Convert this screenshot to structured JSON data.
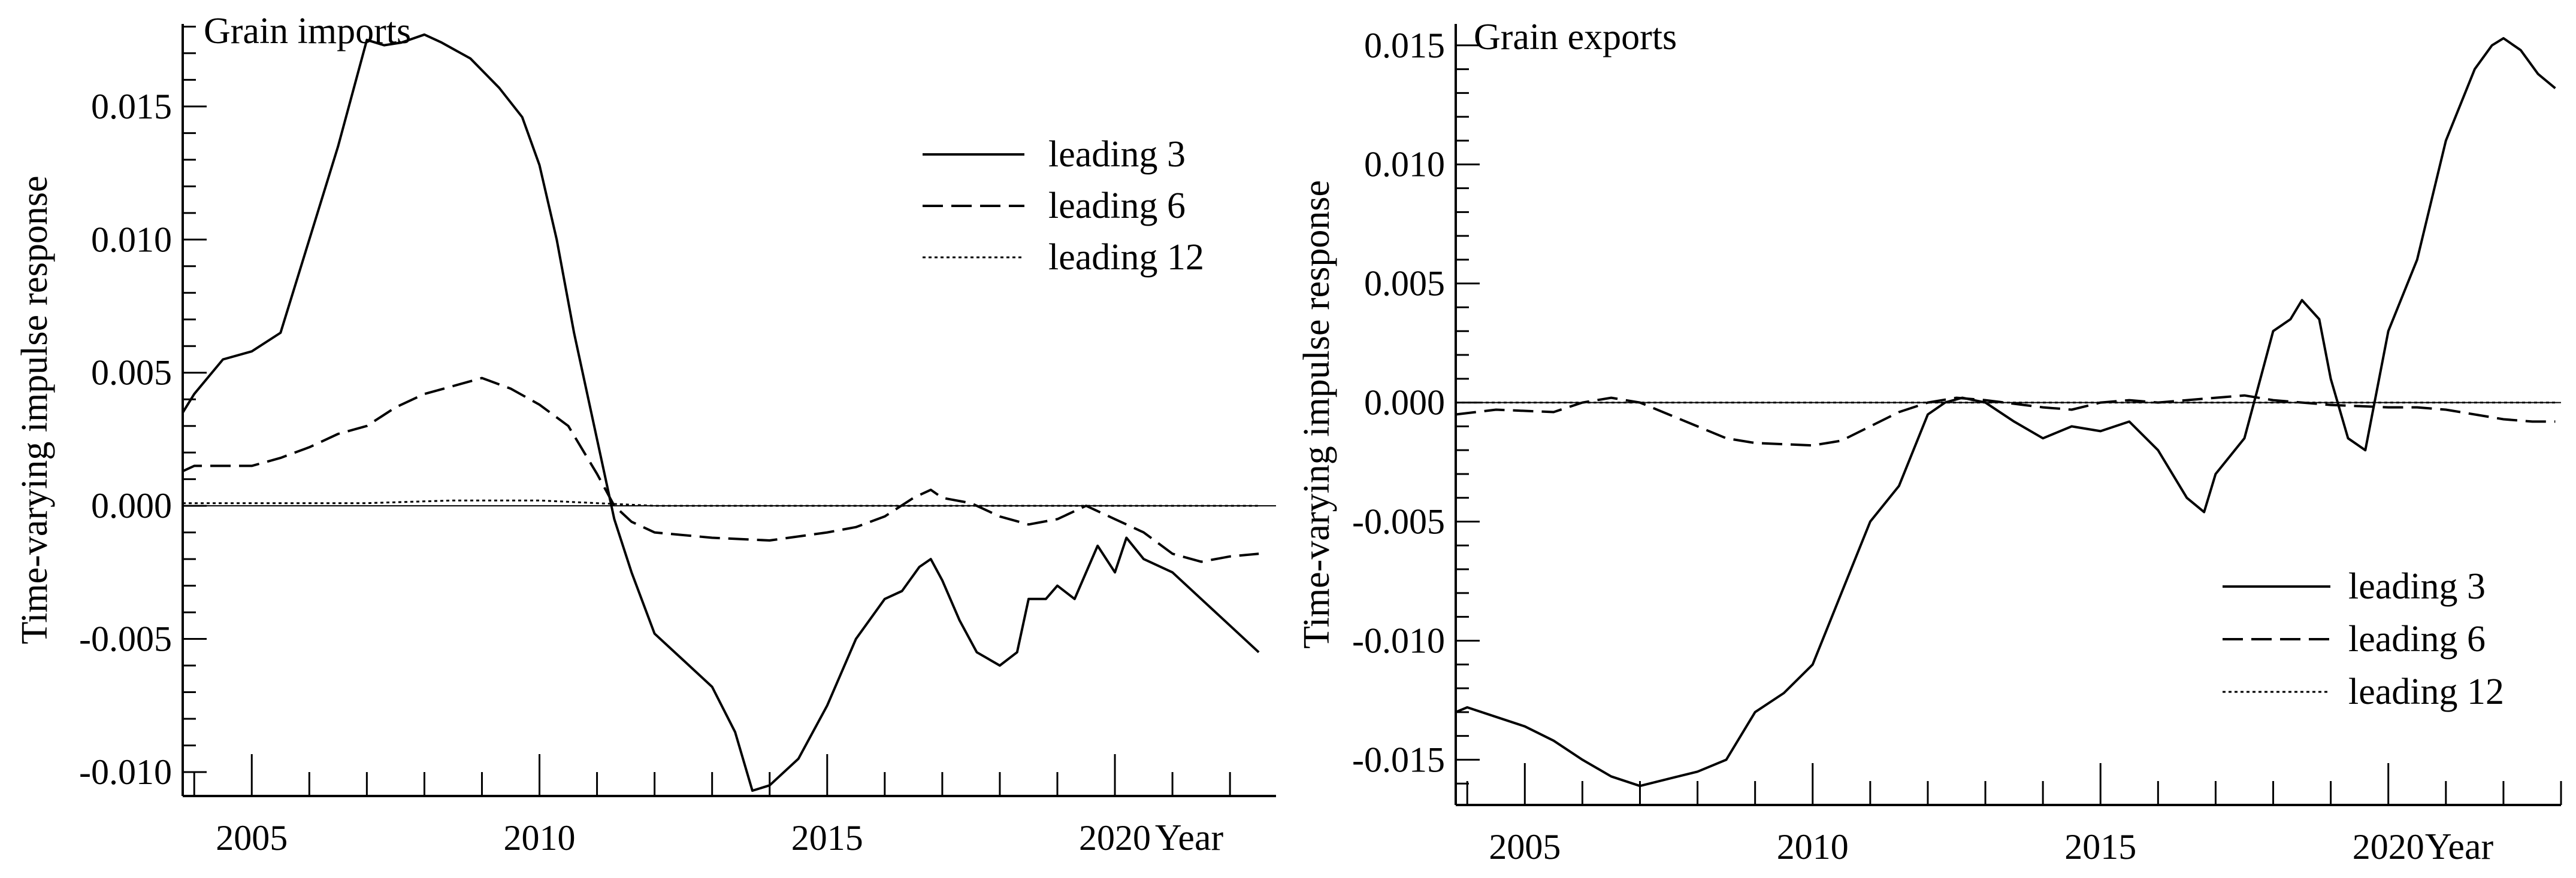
{
  "chart_data": [
    {
      "type": "line",
      "title": "Grain imports",
      "xlabel": "Year",
      "ylabel": "Time-varying impulse response",
      "xlim": [
        2003.8,
        2022.8
      ],
      "ylim": [
        -0.0109,
        0.0181
      ],
      "x_ticks": [
        2005,
        2010,
        2015,
        2020
      ],
      "x_tick_labels": [
        "2005",
        "2010",
        "2015",
        "2020"
      ],
      "y_ticks": [
        -0.01,
        -0.005,
        0.0,
        0.005,
        0.01,
        0.015
      ],
      "y_tick_labels": [
        "-0.010",
        "-0.005",
        "0.000",
        "0.005",
        "0.010",
        "0.015"
      ],
      "legend_position": "top-right",
      "series": [
        {
          "name": "leading 3",
          "style": "solid",
          "x": [
            2003.8,
            2004.0,
            2004.5,
            2005.0,
            2005.5,
            2006.0,
            2006.5,
            2007.0,
            2007.3,
            2007.6,
            2008.0,
            2008.3,
            2008.8,
            2009.3,
            2009.7,
            2010.0,
            2010.3,
            2010.6,
            2011.0,
            2011.3,
            2011.6,
            2012.0,
            2012.5,
            2013.0,
            2013.4,
            2013.7,
            2014.0,
            2014.5,
            2015.0,
            2015.5,
            2016.0,
            2016.3,
            2016.6,
            2016.8,
            2017.0,
            2017.3,
            2017.6,
            2018.0,
            2018.3,
            2018.5,
            2018.8,
            2019.0,
            2019.3,
            2019.5,
            2019.7,
            2020.0,
            2020.2,
            2020.5,
            2021.0,
            2021.5,
            2022.0,
            2022.5
          ],
          "values": [
            0.0035,
            0.0042,
            0.0055,
            0.0058,
            0.0065,
            0.01,
            0.0135,
            0.0175,
            0.0173,
            0.0174,
            0.0177,
            0.0174,
            0.0168,
            0.0157,
            0.0146,
            0.0128,
            0.01,
            0.0065,
            0.0025,
            -0.0005,
            -0.0025,
            -0.0048,
            -0.0058,
            -0.0068,
            -0.0085,
            -0.0107,
            -0.0105,
            -0.0095,
            -0.0075,
            -0.005,
            -0.0035,
            -0.0032,
            -0.0023,
            -0.002,
            -0.0028,
            -0.0043,
            -0.0055,
            -0.006,
            -0.0055,
            -0.0035,
            -0.0035,
            -0.003,
            -0.0035,
            -0.0025,
            -0.0015,
            -0.0025,
            -0.0012,
            -0.002,
            -0.0025,
            -0.0035,
            -0.0045,
            -0.0055
          ]
        },
        {
          "name": "leading 6",
          "style": "dashed",
          "x": [
            2003.8,
            2004.0,
            2005.0,
            2005.5,
            2006.0,
            2006.5,
            2007.0,
            2007.5,
            2008.0,
            2008.5,
            2009.0,
            2009.5,
            2010.0,
            2010.5,
            2011.0,
            2011.3,
            2011.6,
            2012.0,
            2013.0,
            2014.0,
            2015.0,
            2015.5,
            2016.0,
            2016.5,
            2016.8,
            2017.0,
            2017.5,
            2018.0,
            2018.5,
            2019.0,
            2019.5,
            2020.0,
            2020.5,
            2021.0,
            2021.5,
            2022.0,
            2022.5
          ],
          "values": [
            0.0013,
            0.0015,
            0.0015,
            0.0018,
            0.0022,
            0.0027,
            0.003,
            0.0037,
            0.0042,
            0.0045,
            0.0048,
            0.0044,
            0.0038,
            0.003,
            0.0012,
            0.0,
            -0.0006,
            -0.001,
            -0.0012,
            -0.0013,
            -0.001,
            -0.0008,
            -0.0004,
            0.0003,
            0.0006,
            0.0003,
            0.0001,
            -0.0004,
            -0.0007,
            -0.0005,
            0.0,
            -0.0005,
            -0.001,
            -0.0018,
            -0.0021,
            -0.0019,
            -0.0018
          ]
        },
        {
          "name": "leading 12",
          "style": "dotted",
          "x": [
            2003.8,
            2005.0,
            2007.0,
            2008.5,
            2010.0,
            2011.0,
            2012.0,
            2014.0,
            2016.0,
            2018.0,
            2020.0,
            2022.5
          ],
          "values": [
            0.0001,
            0.0001,
            0.0001,
            0.0002,
            0.0002,
            0.0001,
            0.0,
            0.0,
            0.0,
            0.0,
            0.0,
            0.0
          ]
        }
      ]
    },
    {
      "type": "line",
      "title": "Grain exports",
      "xlabel": "Year",
      "ylabel": "Time-varying impulse response",
      "xlim": [
        2003.8,
        2023.0
      ],
      "ylim": [
        -0.0169,
        0.0159
      ],
      "x_ticks": [
        2005,
        2010,
        2015,
        2020
      ],
      "x_tick_labels": [
        "2005",
        "2010",
        "2015",
        "2020"
      ],
      "y_ticks": [
        -0.015,
        -0.01,
        -0.005,
        0.0,
        0.005,
        0.01,
        0.015
      ],
      "y_tick_labels": [
        "-0.015",
        "-0.010",
        "-0.005",
        "0.000",
        "0.005",
        "0.010",
        "0.015"
      ],
      "legend_position": "bottom-right",
      "series": [
        {
          "name": "leading 3",
          "style": "solid",
          "x": [
            2003.8,
            2004.0,
            2004.5,
            2005.0,
            2005.5,
            2006.0,
            2006.5,
            2007.0,
            2007.5,
            2008.0,
            2008.5,
            2009.0,
            2009.5,
            2010.0,
            2010.5,
            2011.0,
            2011.5,
            2012.0,
            2012.3,
            2012.6,
            2013.0,
            2013.5,
            2014.0,
            2014.5,
            2015.0,
            2015.5,
            2016.0,
            2016.5,
            2016.8,
            2017.0,
            2017.5,
            2018.0,
            2018.3,
            2018.5,
            2018.8,
            2019.0,
            2019.3,
            2019.6,
            2020.0,
            2020.5,
            2021.0,
            2021.5,
            2021.8,
            2022.0,
            2022.3,
            2022.6,
            2022.9
          ],
          "values": [
            -0.013,
            -0.0128,
            -0.0132,
            -0.0136,
            -0.0142,
            -0.015,
            -0.0157,
            -0.0161,
            -0.0158,
            -0.0155,
            -0.015,
            -0.013,
            -0.0122,
            -0.011,
            -0.008,
            -0.005,
            -0.0035,
            -0.0005,
            0.0,
            0.0002,
            0.0,
            -0.0008,
            -0.0015,
            -0.001,
            -0.0012,
            -0.0008,
            -0.002,
            -0.004,
            -0.0046,
            -0.003,
            -0.0015,
            0.003,
            0.0035,
            0.0043,
            0.0035,
            0.001,
            -0.0015,
            -0.002,
            0.003,
            0.006,
            0.011,
            0.014,
            0.015,
            0.0153,
            0.0148,
            0.0138,
            0.0132
          ]
        },
        {
          "name": "leading 6",
          "style": "dashed",
          "x": [
            2003.8,
            2004.5,
            2005.5,
            2006.0,
            2006.5,
            2007.0,
            2007.5,
            2008.0,
            2008.5,
            2009.0,
            2010.0,
            2010.5,
            2011.0,
            2011.5,
            2012.0,
            2012.5,
            2013.0,
            2014.0,
            2014.5,
            2015.0,
            2015.5,
            2016.0,
            2016.5,
            2017.0,
            2017.5,
            2018.0,
            2018.5,
            2019.0,
            2020.0,
            2020.5,
            2021.0,
            2021.5,
            2022.0,
            2022.5,
            2022.9
          ],
          "values": [
            -0.0005,
            -0.0003,
            -0.0004,
            0.0,
            0.0002,
            0.0,
            -0.0005,
            -0.001,
            -0.0015,
            -0.0017,
            -0.0018,
            -0.0016,
            -0.001,
            -0.0004,
            0.0,
            0.0002,
            0.0001,
            -0.0002,
            -0.0003,
            0.0,
            0.0001,
            0.0,
            0.0001,
            0.0002,
            0.0003,
            0.0001,
            0.0,
            -0.0001,
            -0.0002,
            -0.0002,
            -0.0003,
            -0.0005,
            -0.0007,
            -0.0008,
            -0.0008
          ]
        },
        {
          "name": "leading 12",
          "style": "dotted",
          "x": [
            2003.8,
            2006.0,
            2008.0,
            2010.0,
            2012.0,
            2014.0,
            2016.0,
            2018.0,
            2020.0,
            2022.9
          ],
          "values": [
            0.0,
            0.0,
            0.0,
            0.0,
            0.0,
            0.0,
            0.0,
            0.0,
            0.0,
            0.0
          ]
        }
      ]
    }
  ]
}
